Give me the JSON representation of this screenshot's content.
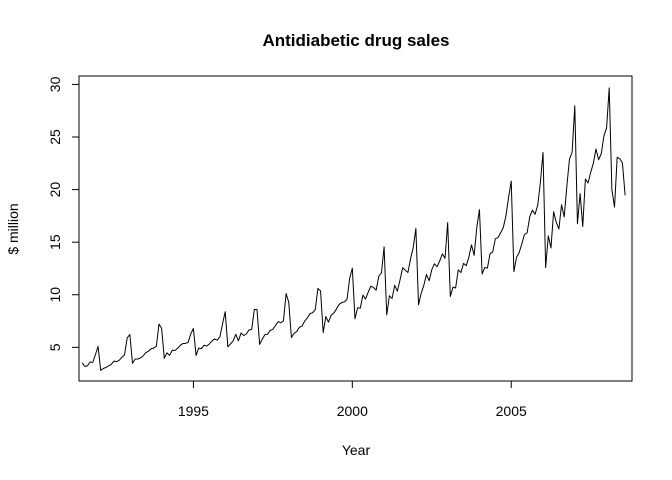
{
  "chart_data": {
    "type": "line",
    "title": "Antidiabetic drug sales",
    "xlabel": "Year",
    "ylabel": "$ million",
    "xlim": [
      1991.4,
      2008.8
    ],
    "ylim": [
      1.8,
      30.8
    ],
    "xticks": [
      1995,
      2000,
      2005
    ],
    "yticks": [
      5,
      10,
      15,
      20,
      25,
      30
    ],
    "grid": false,
    "legend": "none",
    "line_color": "#000000",
    "x_start": 1991.5,
    "x_step": 0.0833333,
    "series": [
      {
        "values": [
          3.53,
          3.18,
          3.25,
          3.61,
          3.57,
          4.31,
          5.09,
          2.81,
          2.99,
          3.1,
          3.23,
          3.39,
          3.69,
          3.63,
          3.78,
          4.05,
          4.3,
          5.91,
          6.22,
          3.48,
          3.88,
          3.89,
          4.0,
          4.18,
          4.49,
          4.63,
          4.87,
          4.93,
          5.11,
          7.21,
          6.8,
          3.96,
          4.48,
          4.24,
          4.72,
          4.7,
          4.89,
          5.18,
          5.36,
          5.37,
          5.48,
          6.28,
          6.79,
          4.23,
          4.93,
          4.88,
          5.2,
          5.12,
          5.32,
          5.61,
          5.8,
          5.68,
          6.0,
          7.23,
          8.39,
          5.05,
          5.33,
          5.61,
          6.24,
          5.62,
          6.37,
          6.12,
          6.28,
          6.66,
          6.69,
          8.6,
          8.6,
          5.28,
          5.78,
          6.21,
          6.25,
          6.61,
          6.72,
          7.08,
          7.44,
          7.33,
          7.52,
          10.11,
          9.28,
          5.93,
          6.33,
          6.5,
          6.91,
          7.02,
          7.49,
          7.8,
          8.2,
          8.29,
          8.58,
          10.6,
          10.37,
          6.4,
          7.93,
          7.4,
          8.04,
          8.26,
          8.64,
          9.08,
          9.26,
          9.32,
          9.56,
          11.57,
          12.53,
          7.72,
          8.77,
          8.72,
          9.97,
          9.59,
          10.24,
          10.82,
          10.68,
          10.44,
          11.77,
          12.07,
          14.55,
          8.09,
          9.91,
          9.64,
          10.9,
          10.34,
          11.39,
          12.57,
          12.34,
          12.12,
          13.45,
          14.5,
          16.3,
          9.05,
          10.14,
          10.9,
          11.93,
          11.33,
          12.38,
          12.94,
          12.66,
          13.22,
          13.89,
          13.47,
          16.86,
          9.84,
          10.73,
          10.64,
          12.37,
          12.11,
          12.98,
          12.76,
          13.58,
          14.74,
          13.75,
          16.42,
          18.09,
          11.98,
          12.59,
          12.53,
          13.91,
          14.06,
          15.33,
          15.44,
          15.9,
          16.38,
          17.5,
          19.25,
          20.81,
          12.2,
          13.56,
          14.01,
          14.84,
          15.73,
          15.89,
          17.43,
          18.04,
          17.65,
          18.52,
          20.65,
          23.53,
          12.58,
          15.61,
          14.45,
          17.89,
          16.9,
          16.26,
          18.56,
          17.4,
          20.34,
          22.91,
          23.55,
          27.97,
          16.76,
          19.62,
          16.49,
          21.0,
          20.63,
          21.63,
          22.5,
          23.86,
          22.84,
          23.42,
          25.11,
          25.85,
          29.67,
          20.0,
          18.33,
          23.07,
          22.94,
          22.5,
          19.45
        ]
      }
    ]
  }
}
